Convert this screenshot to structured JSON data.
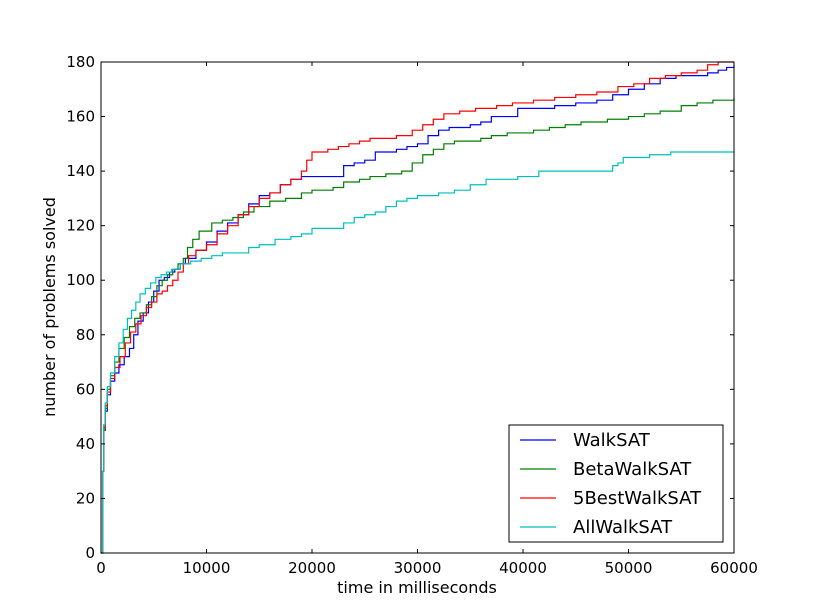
{
  "chart_data": {
    "type": "line",
    "title": "",
    "xlabel": "time in milliseconds",
    "ylabel": "number of problems solved",
    "xlim": [
      0,
      60000
    ],
    "ylim": [
      0,
      180
    ],
    "xticks": [
      0,
      10000,
      20000,
      30000,
      40000,
      50000,
      60000
    ],
    "yticks": [
      0,
      20,
      40,
      60,
      80,
      100,
      120,
      140,
      160,
      180
    ],
    "grid": false,
    "legend": "bottom-right",
    "step": true,
    "series": [
      {
        "name": "WalkSAT",
        "color": "#0000ff",
        "points": [
          [
            0,
            0
          ],
          [
            100,
            0
          ],
          [
            150,
            30
          ],
          [
            250,
            45
          ],
          [
            400,
            52
          ],
          [
            600,
            58
          ],
          [
            900,
            63
          ],
          [
            1300,
            66
          ],
          [
            1700,
            69
          ],
          [
            2200,
            72
          ],
          [
            2700,
            75
          ],
          [
            3100,
            80
          ],
          [
            3500,
            85
          ],
          [
            4000,
            88
          ],
          [
            4500,
            92
          ],
          [
            5000,
            96
          ],
          [
            5500,
            100
          ],
          [
            6000,
            101
          ],
          [
            6500,
            103
          ],
          [
            7000,
            104
          ],
          [
            7500,
            106
          ],
          [
            8000,
            108
          ],
          [
            9000,
            111
          ],
          [
            10000,
            114
          ],
          [
            11000,
            118
          ],
          [
            12000,
            121
          ],
          [
            13000,
            124
          ],
          [
            14000,
            128
          ],
          [
            15000,
            131
          ],
          [
            16000,
            132
          ],
          [
            17000,
            135
          ],
          [
            18000,
            137
          ],
          [
            19000,
            138
          ],
          [
            22000,
            138
          ],
          [
            23000,
            142
          ],
          [
            24000,
            143
          ],
          [
            25000,
            144
          ],
          [
            26000,
            147
          ],
          [
            27000,
            147
          ],
          [
            28000,
            148
          ],
          [
            29000,
            149
          ],
          [
            30000,
            150
          ],
          [
            31000,
            153
          ],
          [
            32000,
            155
          ],
          [
            33000,
            156
          ],
          [
            35000,
            157
          ],
          [
            36000,
            158
          ],
          [
            37000,
            160
          ],
          [
            39000,
            160
          ],
          [
            39500,
            163
          ],
          [
            41000,
            163
          ],
          [
            43000,
            164
          ],
          [
            45000,
            165
          ],
          [
            47000,
            166
          ],
          [
            48500,
            168
          ],
          [
            50000,
            170
          ],
          [
            51500,
            172
          ],
          [
            53000,
            174
          ],
          [
            54500,
            175
          ],
          [
            56000,
            175
          ],
          [
            57500,
            176
          ],
          [
            58500,
            177
          ],
          [
            59300,
            178
          ],
          [
            60000,
            179
          ]
        ]
      },
      {
        "name": "BetaWalkSAT",
        "color": "#008000",
        "points": [
          [
            0,
            0
          ],
          [
            100,
            0
          ],
          [
            150,
            30
          ],
          [
            250,
            45
          ],
          [
            400,
            53
          ],
          [
            600,
            60
          ],
          [
            900,
            65
          ],
          [
            1300,
            70
          ],
          [
            1700,
            75
          ],
          [
            2200,
            79
          ],
          [
            2700,
            83
          ],
          [
            3200,
            86
          ],
          [
            3700,
            88
          ],
          [
            4300,
            91
          ],
          [
            4800,
            94
          ],
          [
            5300,
            98
          ],
          [
            5800,
            100
          ],
          [
            6300,
            102
          ],
          [
            6800,
            104
          ],
          [
            7300,
            106
          ],
          [
            7800,
            108
          ],
          [
            8200,
            112
          ],
          [
            8700,
            115
          ],
          [
            9300,
            118
          ],
          [
            10500,
            121
          ],
          [
            11500,
            122
          ],
          [
            12500,
            123
          ],
          [
            13500,
            125
          ],
          [
            14500,
            127
          ],
          [
            16000,
            129
          ],
          [
            17500,
            130
          ],
          [
            19000,
            132
          ],
          [
            20000,
            133
          ],
          [
            22000,
            134
          ],
          [
            23000,
            136
          ],
          [
            24500,
            137
          ],
          [
            25500,
            138
          ],
          [
            27000,
            139
          ],
          [
            28500,
            140
          ],
          [
            29500,
            143
          ],
          [
            30500,
            146
          ],
          [
            31500,
            148
          ],
          [
            32500,
            150
          ],
          [
            33500,
            151
          ],
          [
            36000,
            152
          ],
          [
            37000,
            153
          ],
          [
            38500,
            154
          ],
          [
            41000,
            155
          ],
          [
            42500,
            156
          ],
          [
            44000,
            157
          ],
          [
            45500,
            158
          ],
          [
            48000,
            159
          ],
          [
            50000,
            160
          ],
          [
            51500,
            161
          ],
          [
            53000,
            162
          ],
          [
            55000,
            164
          ],
          [
            56500,
            165
          ],
          [
            58000,
            166
          ],
          [
            60000,
            167
          ]
        ]
      },
      {
        "name": "5BestWalkSAT",
        "color": "#ff0000",
        "points": [
          [
            0,
            0
          ],
          [
            100,
            0
          ],
          [
            150,
            30
          ],
          [
            250,
            46
          ],
          [
            400,
            54
          ],
          [
            600,
            59
          ],
          [
            900,
            64
          ],
          [
            1300,
            68
          ],
          [
            1800,
            72
          ],
          [
            2300,
            77
          ],
          [
            2800,
            81
          ],
          [
            3300,
            84
          ],
          [
            3800,
            87
          ],
          [
            4300,
            90
          ],
          [
            4800,
            92
          ],
          [
            5300,
            95
          ],
          [
            5800,
            96
          ],
          [
            6300,
            98
          ],
          [
            6800,
            100
          ],
          [
            7300,
            103
          ],
          [
            7800,
            106
          ],
          [
            8300,
            109
          ],
          [
            9000,
            111
          ],
          [
            10000,
            113
          ],
          [
            11000,
            117
          ],
          [
            12000,
            120
          ],
          [
            13000,
            124
          ],
          [
            14000,
            127
          ],
          [
            15000,
            130
          ],
          [
            16000,
            132
          ],
          [
            17000,
            135
          ],
          [
            18000,
            137
          ],
          [
            19000,
            140
          ],
          [
            19500,
            144
          ],
          [
            20000,
            147
          ],
          [
            21500,
            148
          ],
          [
            22500,
            149
          ],
          [
            23500,
            150
          ],
          [
            24500,
            151
          ],
          [
            25500,
            152
          ],
          [
            27000,
            152
          ],
          [
            28000,
            153
          ],
          [
            29500,
            155
          ],
          [
            30500,
            157
          ],
          [
            31500,
            159
          ],
          [
            32500,
            161
          ],
          [
            34000,
            162
          ],
          [
            35500,
            163
          ],
          [
            37500,
            164
          ],
          [
            39000,
            165
          ],
          [
            41000,
            166
          ],
          [
            43000,
            167
          ],
          [
            45000,
            168
          ],
          [
            47000,
            169
          ],
          [
            49000,
            171
          ],
          [
            50500,
            172
          ],
          [
            52000,
            174
          ],
          [
            53500,
            175
          ],
          [
            55000,
            176
          ],
          [
            56500,
            177
          ],
          [
            57500,
            179
          ],
          [
            58500,
            180
          ],
          [
            60000,
            180
          ]
        ]
      },
      {
        "name": "AllWalkSAT",
        "color": "#00bfbf",
        "points": [
          [
            0,
            0
          ],
          [
            100,
            0
          ],
          [
            150,
            30
          ],
          [
            250,
            47
          ],
          [
            400,
            55
          ],
          [
            600,
            61
          ],
          [
            900,
            66
          ],
          [
            1300,
            72
          ],
          [
            1700,
            77
          ],
          [
            2100,
            82
          ],
          [
            2500,
            86
          ],
          [
            2900,
            89
          ],
          [
            3300,
            92
          ],
          [
            3700,
            95
          ],
          [
            4200,
            97
          ],
          [
            4700,
            99
          ],
          [
            5200,
            101
          ],
          [
            5700,
            102
          ],
          [
            6200,
            103
          ],
          [
            6700,
            104
          ],
          [
            7500,
            106
          ],
          [
            8500,
            107
          ],
          [
            9500,
            108
          ],
          [
            10500,
            109
          ],
          [
            11500,
            110
          ],
          [
            13000,
            110
          ],
          [
            14000,
            112
          ],
          [
            15000,
            113
          ],
          [
            16500,
            115
          ],
          [
            18000,
            116
          ],
          [
            19000,
            117
          ],
          [
            20000,
            119
          ],
          [
            22000,
            119
          ],
          [
            23000,
            121
          ],
          [
            24000,
            123
          ],
          [
            25000,
            124
          ],
          [
            26000,
            125
          ],
          [
            27000,
            127
          ],
          [
            28000,
            129
          ],
          [
            29000,
            130
          ],
          [
            30000,
            131
          ],
          [
            32000,
            132
          ],
          [
            33500,
            133
          ],
          [
            35000,
            135
          ],
          [
            36500,
            137
          ],
          [
            38500,
            137
          ],
          [
            39500,
            138
          ],
          [
            40000,
            138
          ],
          [
            41500,
            140
          ],
          [
            45000,
            140
          ],
          [
            46500,
            140
          ],
          [
            47500,
            140
          ],
          [
            48500,
            142
          ],
          [
            49000,
            143
          ],
          [
            49500,
            145
          ],
          [
            52000,
            146
          ],
          [
            53000,
            146
          ],
          [
            54000,
            147
          ],
          [
            60000,
            147
          ]
        ]
      }
    ]
  }
}
